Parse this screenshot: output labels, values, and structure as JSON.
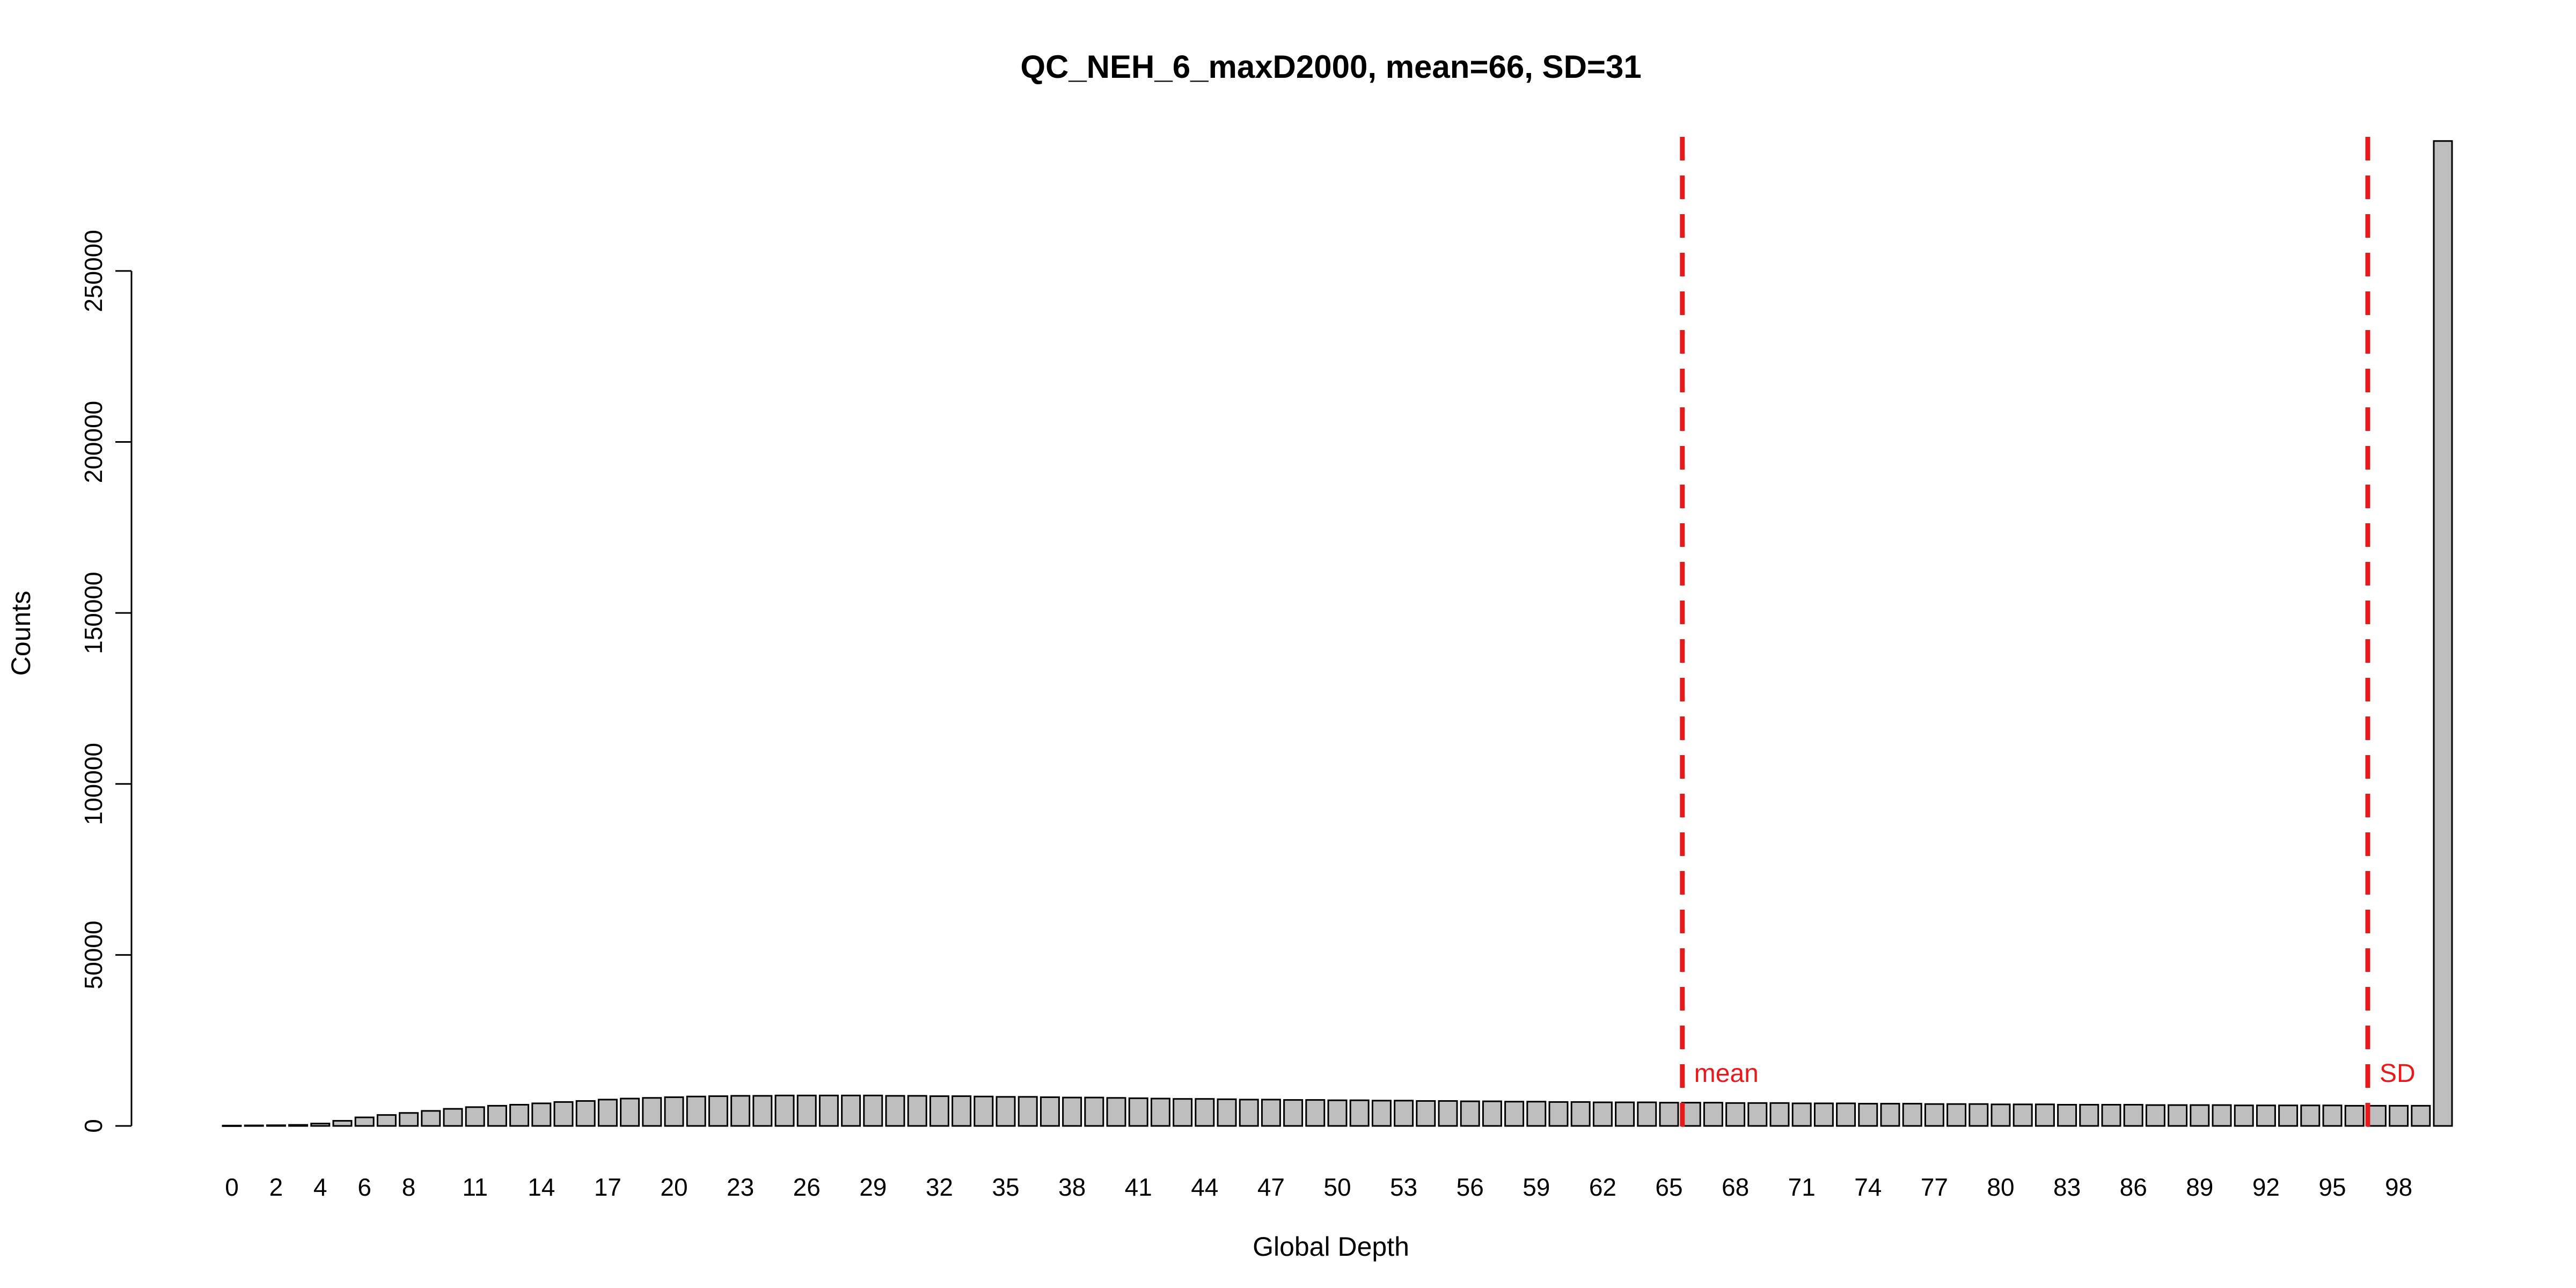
{
  "chart_data": {
    "type": "bar",
    "title": "QC_NEH_6_maxD2000, mean=66, SD=31",
    "xlabel": "Global Depth",
    "ylabel": "Counts",
    "ylim": [
      0,
      290000
    ],
    "yticks": [
      0,
      50000,
      100000,
      150000,
      200000,
      250000
    ],
    "ytick_labels": [
      "0",
      "50000",
      "100000",
      "150000",
      "200000",
      "250000"
    ],
    "categories": [
      "0",
      "1",
      "2",
      "3",
      "4",
      "5",
      "6",
      "7",
      "8",
      "9",
      "10",
      "11",
      "12",
      "13",
      "14",
      "15",
      "16",
      "17",
      "18",
      "19",
      "20",
      "21",
      "22",
      "23",
      "24",
      "25",
      "26",
      "27",
      "28",
      "29",
      "30",
      "31",
      "32",
      "33",
      "34",
      "35",
      "36",
      "37",
      "38",
      "39",
      "40",
      "41",
      "42",
      "43",
      "44",
      "45",
      "46",
      "47",
      "48",
      "49",
      "50",
      "51",
      "52",
      "53",
      "54",
      "55",
      "56",
      "57",
      "58",
      "59",
      "60",
      "61",
      "62",
      "63",
      "64",
      "65",
      "66",
      "67",
      "68",
      "69",
      "70",
      "71",
      "72",
      "73",
      "74",
      "75",
      "76",
      "77",
      "78",
      "79",
      "80",
      "81",
      "82",
      "83",
      "84",
      "85",
      "86",
      "87",
      "88",
      "89",
      "90",
      "91",
      "92",
      "93",
      "94",
      "95",
      "96",
      "97",
      "98",
      "99",
      "100"
    ],
    "x_tick_labels": [
      {
        "index": 0,
        "label": "0"
      },
      {
        "index": 2,
        "label": "2"
      },
      {
        "index": 4,
        "label": "4"
      },
      {
        "index": 6,
        "label": "6"
      },
      {
        "index": 8,
        "label": "8"
      },
      {
        "index": 11,
        "label": "11"
      },
      {
        "index": 14,
        "label": "14"
      },
      {
        "index": 17,
        "label": "17"
      },
      {
        "index": 20,
        "label": "20"
      },
      {
        "index": 23,
        "label": "23"
      },
      {
        "index": 26,
        "label": "26"
      },
      {
        "index": 29,
        "label": "29"
      },
      {
        "index": 32,
        "label": "32"
      },
      {
        "index": 35,
        "label": "35"
      },
      {
        "index": 38,
        "label": "38"
      },
      {
        "index": 41,
        "label": "41"
      },
      {
        "index": 44,
        "label": "44"
      },
      {
        "index": 47,
        "label": "47"
      },
      {
        "index": 50,
        "label": "50"
      },
      {
        "index": 53,
        "label": "53"
      },
      {
        "index": 56,
        "label": "56"
      },
      {
        "index": 59,
        "label": "59"
      },
      {
        "index": 62,
        "label": "62"
      },
      {
        "index": 65,
        "label": "65"
      },
      {
        "index": 68,
        "label": "68"
      },
      {
        "index": 71,
        "label": "71"
      },
      {
        "index": 74,
        "label": "74"
      },
      {
        "index": 77,
        "label": "77"
      },
      {
        "index": 80,
        "label": "80"
      },
      {
        "index": 83,
        "label": "83"
      },
      {
        "index": 86,
        "label": "86"
      },
      {
        "index": 89,
        "label": "89"
      },
      {
        "index": 92,
        "label": "92"
      },
      {
        "index": 95,
        "label": "95"
      },
      {
        "index": 98,
        "label": "98"
      }
    ],
    "values": [
      100,
      150,
      200,
      300,
      700,
      1500,
      2500,
      3200,
      3800,
      4400,
      5000,
      5500,
      5900,
      6200,
      6600,
      7000,
      7300,
      7700,
      8000,
      8200,
      8400,
      8600,
      8700,
      8800,
      8800,
      8900,
      8900,
      8900,
      8900,
      8900,
      8800,
      8800,
      8700,
      8700,
      8600,
      8500,
      8500,
      8400,
      8300,
      8300,
      8200,
      8100,
      8000,
      7900,
      7900,
      7800,
      7700,
      7700,
      7600,
      7600,
      7500,
      7500,
      7400,
      7400,
      7300,
      7300,
      7200,
      7200,
      7100,
      7100,
      7000,
      7000,
      6900,
      6900,
      6900,
      6800,
      6800,
      6800,
      6700,
      6700,
      6700,
      6600,
      6600,
      6600,
      6500,
      6500,
      6500,
      6400,
      6400,
      6400,
      6300,
      6300,
      6300,
      6200,
      6200,
      6200,
      6200,
      6100,
      6100,
      6100,
      6100,
      6000,
      6000,
      6000,
      6000,
      6000,
      5900,
      5900,
      5900,
      5900,
      288000
    ],
    "bar_color": "#bebebe",
    "bar_edge_color": "#000000",
    "vlines": [
      {
        "label": "mean",
        "x": 66.5,
        "color": "#e8191b",
        "style": "dashed"
      },
      {
        "label": "SD",
        "x": 97.5,
        "color": "#e8191b",
        "style": "dashed"
      }
    ],
    "grid": false,
    "legend": "none"
  }
}
